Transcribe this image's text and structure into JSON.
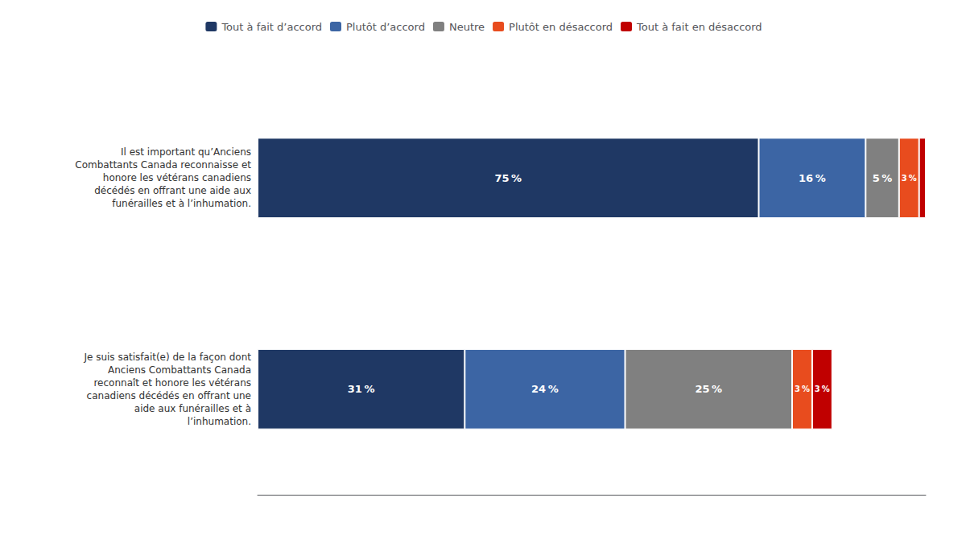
{
  "chart_data": {
    "type": "bar",
    "orientation": "horizontal",
    "stacked": true,
    "categories": [
      "Il est important qu’Anciens\nCombattants Canada reconnaisse et\nhonore les vétérans canadiens\ndécédés en offrant une aide aux\nfunérailles et à l’inhumation.",
      "Je suis satisfait(e) de la façon dont\nAnciens Combattants Canada\nreconnaît et honore les vétérans\ncanadiens décédés en offrant une\naide aux funérailles et à\nl’inhumation."
    ],
    "series": [
      {
        "name": "Tout à fait d’accord",
        "color": "#1f3864",
        "values": [
          75,
          31
        ],
        "value_labels": [
          "75 %",
          "31 %"
        ]
      },
      {
        "name": "Plutôt d’accord",
        "color": "#3c65a4",
        "values": [
          16,
          24
        ],
        "value_labels": [
          "16 %",
          "24 %"
        ]
      },
      {
        "name": "Neutre",
        "color": "#808080",
        "values": [
          5,
          25
        ],
        "value_labels": [
          "5 %",
          "25 %"
        ]
      },
      {
        "name": "Plutôt en désaccord",
        "color": "#e84c1e",
        "values": [
          3,
          3
        ],
        "value_labels": [
          "3 %",
          "3 %"
        ]
      },
      {
        "name": "Tout à fait en désaccord",
        "color": "#c00000",
        "values": [
          1,
          3
        ],
        "value_labels": [
          null,
          "3 %"
        ]
      }
    ],
    "xlim": [
      0,
      100
    ],
    "data_labels": true,
    "tick_labels": "y",
    "grid": false,
    "legend": "top"
  }
}
